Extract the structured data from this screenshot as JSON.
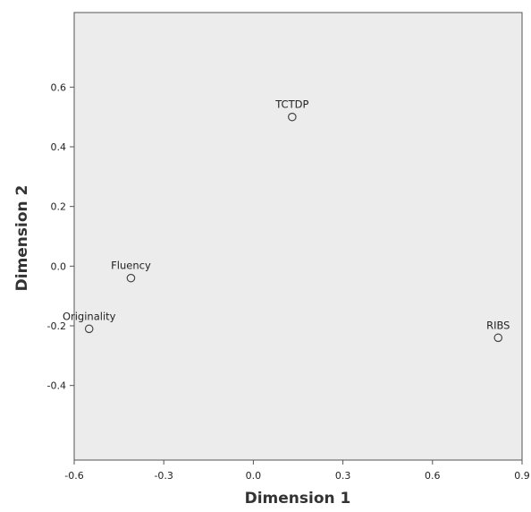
{
  "chart_data": {
    "type": "scatter",
    "title": "",
    "xlabel": "Dimension 1",
    "ylabel": "Dimension 2",
    "xlim": [
      -0.6,
      0.9
    ],
    "ylim": [
      -0.65,
      0.85
    ],
    "xticks": [
      -0.6,
      -0.3,
      0.0,
      0.3,
      0.6,
      0.9
    ],
    "xtick_labels": [
      "-0.6",
      "-0.3",
      "0.0",
      "0.3",
      "0.6",
      "0.9"
    ],
    "yticks": [
      -0.4,
      -0.2,
      0.0,
      0.2,
      0.4,
      0.6
    ],
    "ytick_labels": [
      "-0.4",
      "-0.2",
      "0.0",
      "0.2",
      "0.4",
      "0.6"
    ],
    "grid": false,
    "legend": "none",
    "background_color": "#ececec",
    "marker": "open-circle",
    "points": [
      {
        "label": "TCTDP",
        "x": 0.13,
        "y": 0.5
      },
      {
        "label": "Fluency",
        "x": -0.41,
        "y": -0.04
      },
      {
        "label": "Originality",
        "x": -0.55,
        "y": -0.21
      },
      {
        "label": "RIBS",
        "x": 0.82,
        "y": -0.24
      }
    ]
  }
}
